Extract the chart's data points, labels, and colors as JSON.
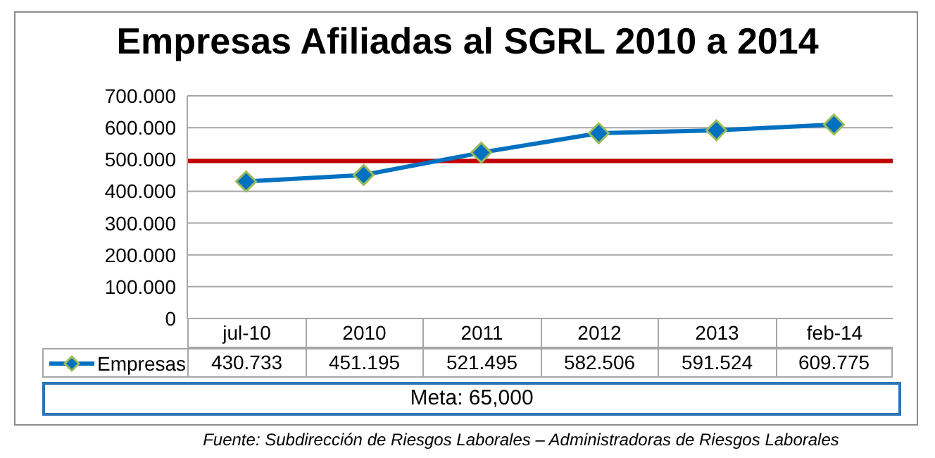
{
  "chart_data": {
    "type": "line",
    "title": "Empresas Afiliadas al SGRL 2010 a 2014",
    "categories": [
      "jul-10",
      "2010",
      "2011",
      "2012",
      "2013",
      "feb-14"
    ],
    "series": [
      {
        "name": "Empresas",
        "color": "#0070c0",
        "values": [
          430733,
          451195,
          521495,
          582506,
          591524,
          609775
        ],
        "value_labels": [
          "430.733",
          "451.195",
          "521.495",
          "582.506",
          "591.524",
          "609.775"
        ]
      }
    ],
    "ylim": [
      0,
      700000
    ],
    "yticks": [
      {
        "value": 0,
        "label": "0"
      },
      {
        "value": 100000,
        "label": "100.000"
      },
      {
        "value": 200000,
        "label": "200.000"
      },
      {
        "value": 300000,
        "label": "300.000"
      },
      {
        "value": 400000,
        "label": "400.000"
      },
      {
        "value": 500000,
        "label": "500.000"
      },
      {
        "value": 600000,
        "label": "600.000"
      },
      {
        "value": 700000,
        "label": "700.000"
      }
    ],
    "ref_lines": [
      {
        "axis": "y",
        "value": 495000,
        "color": "#c00000"
      }
    ],
    "annotations": [
      "Meta: 65,000",
      "Fuente: Subdirección de Riesgos Laborales – Administradoras de Riesgos Laborales"
    ],
    "grid": "y",
    "legend": "bottom left",
    "marker": "diamond",
    "line_style": "solid"
  }
}
